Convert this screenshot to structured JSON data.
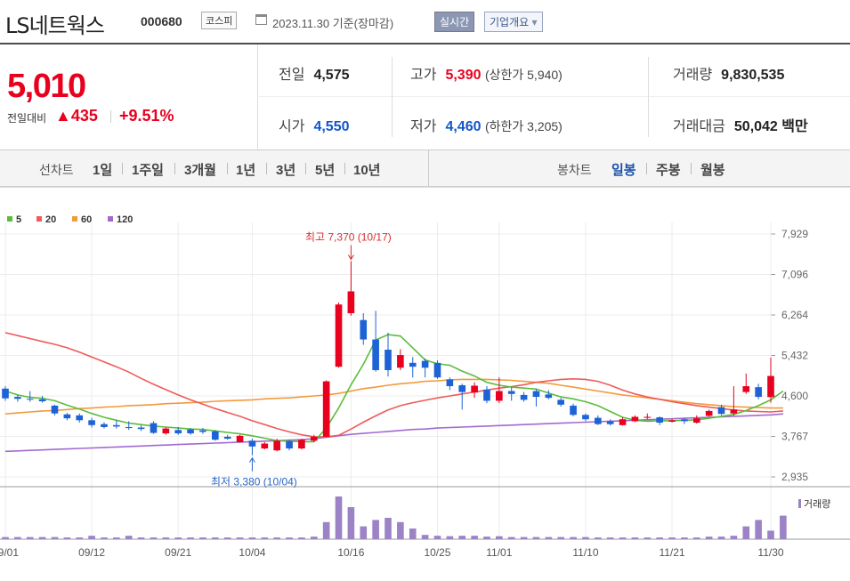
{
  "header": {
    "name": "LS네트웍스",
    "code": "000680",
    "market": "코스피",
    "date": "2023.11.30 기준(장마감)",
    "realtime_label": "실시간",
    "company_label": "기업개요",
    "company_arrow": "▾"
  },
  "price": {
    "current": "5,010",
    "change_label": "전일대비",
    "change_arrow": "▲",
    "change": "435",
    "change_pct": "+9.51%"
  },
  "stats": {
    "prev_label": "전일",
    "prev": "4,575",
    "open_label": "시가",
    "open": "4,550",
    "high_label": "고가",
    "high": "5,390",
    "upper_limit": "(상한가 5,940)",
    "low_label": "저가",
    "low": "4,460",
    "lower_limit": "(하한가 3,205)",
    "volume_label": "거래량",
    "volume": "9,830,535",
    "amount_label": "거래대금",
    "amount": "50,042",
    "amount_unit": "백만"
  },
  "periods": {
    "label": "선차트",
    "items": [
      "1일",
      "1주일",
      "3개월",
      "1년",
      "3년",
      "5년",
      "10년"
    ]
  },
  "candle_types": {
    "label": "봉차트",
    "items": [
      "일봉",
      "주봉",
      "월봉"
    ],
    "active": "일봉"
  },
  "colors": {
    "up": "#e8001e",
    "down": "#1d63d6",
    "ma5": "#5bbd3c",
    "ma20": "#f05a5a",
    "ma60": "#f39a3b",
    "ma120": "#a26ad0",
    "volume": "#9b83c5"
  },
  "chart_data": {
    "type": "candlestick",
    "legend": [
      "5",
      "20",
      "60",
      "120"
    ],
    "ylim": [
      2935,
      7929
    ],
    "y_ticks": [
      "7,929",
      "7,096",
      "6,264",
      "5,432",
      "4,600",
      "3,767",
      "2,935"
    ],
    "x_ticks": [
      "09/01",
      "09/12",
      "09/21",
      "10/04",
      "10/16",
      "10/25",
      "11/01",
      "11/10",
      "11/21",
      "11/30"
    ],
    "annotation_high": "최고 7,370 (10/17)",
    "annotation_low": "최저 3,380 (10/04)",
    "volume_label": "거래량",
    "candles": [
      {
        "o": 4750,
        "c": 4550,
        "h": 4800,
        "l": 4500
      },
      {
        "o": 4580,
        "c": 4540,
        "h": 4620,
        "l": 4480
      },
      {
        "o": 4540,
        "c": 4530,
        "h": 4700,
        "l": 4480
      },
      {
        "o": 4530,
        "c": 4490,
        "h": 4600,
        "l": 4460
      },
      {
        "o": 4400,
        "c": 4240,
        "h": 4420,
        "l": 4200
      },
      {
        "o": 4220,
        "c": 4140,
        "h": 4250,
        "l": 4100
      },
      {
        "o": 4200,
        "c": 4100,
        "h": 4240,
        "l": 4050
      },
      {
        "o": 4100,
        "c": 4000,
        "h": 4150,
        "l": 3950
      },
      {
        "o": 4020,
        "c": 3960,
        "h": 4060,
        "l": 3930
      },
      {
        "o": 4000,
        "c": 3970,
        "h": 4100,
        "l": 3930
      },
      {
        "o": 3960,
        "c": 3940,
        "h": 4080,
        "l": 3900
      },
      {
        "o": 3950,
        "c": 3920,
        "h": 4000,
        "l": 3880
      },
      {
        "o": 4040,
        "c": 3840,
        "h": 4080,
        "l": 3820
      },
      {
        "o": 3830,
        "c": 3930,
        "h": 3950,
        "l": 3800
      },
      {
        "o": 3900,
        "c": 3830,
        "h": 3960,
        "l": 3800
      },
      {
        "o": 3910,
        "c": 3830,
        "h": 3940,
        "l": 3800
      },
      {
        "o": 3890,
        "c": 3860,
        "h": 3940,
        "l": 3820
      },
      {
        "o": 3870,
        "c": 3700,
        "h": 3900,
        "l": 3680
      },
      {
        "o": 3760,
        "c": 3720,
        "h": 3800,
        "l": 3700
      },
      {
        "o": 3650,
        "c": 3780,
        "h": 3800,
        "l": 3640
      },
      {
        "o": 3680,
        "c": 3560,
        "h": 3720,
        "l": 3380
      },
      {
        "o": 3520,
        "c": 3620,
        "h": 3650,
        "l": 3500
      },
      {
        "o": 3480,
        "c": 3680,
        "h": 3720,
        "l": 3460
      },
      {
        "o": 3670,
        "c": 3520,
        "h": 3700,
        "l": 3480
      },
      {
        "o": 3520,
        "c": 3700,
        "h": 3720,
        "l": 3500
      },
      {
        "o": 3680,
        "c": 3760,
        "h": 3800,
        "l": 3650
      },
      {
        "o": 3760,
        "c": 4900,
        "h": 4920,
        "l": 3750
      },
      {
        "o": 5200,
        "c": 6480,
        "h": 6520,
        "l": 5180
      },
      {
        "o": 6300,
        "c": 6750,
        "h": 7370,
        "l": 6250
      },
      {
        "o": 6160,
        "c": 5760,
        "h": 6300,
        "l": 5650
      },
      {
        "o": 5760,
        "c": 5130,
        "h": 6350,
        "l": 5100
      },
      {
        "o": 5550,
        "c": 5130,
        "h": 5900,
        "l": 5000
      },
      {
        "o": 5180,
        "c": 5440,
        "h": 5560,
        "l": 5130
      },
      {
        "o": 5280,
        "c": 5200,
        "h": 5400,
        "l": 4980
      },
      {
        "o": 5320,
        "c": 5180,
        "h": 5370,
        "l": 4980
      },
      {
        "o": 5280,
        "c": 4980,
        "h": 5330,
        "l": 4950
      },
      {
        "o": 4940,
        "c": 4800,
        "h": 4980,
        "l": 4720
      },
      {
        "o": 4820,
        "c": 4680,
        "h": 4850,
        "l": 4320
      },
      {
        "o": 4670,
        "c": 4810,
        "h": 4880,
        "l": 4560
      },
      {
        "o": 4730,
        "c": 4500,
        "h": 4800,
        "l": 4450
      },
      {
        "o": 4500,
        "c": 4700,
        "h": 4980,
        "l": 4450
      },
      {
        "o": 4700,
        "c": 4640,
        "h": 4780,
        "l": 4500
      },
      {
        "o": 4620,
        "c": 4520,
        "h": 4680,
        "l": 4480
      },
      {
        "o": 4700,
        "c": 4580,
        "h": 4740,
        "l": 4380
      },
      {
        "o": 4630,
        "c": 4560,
        "h": 4720,
        "l": 4530
      },
      {
        "o": 4520,
        "c": 4420,
        "h": 4560,
        "l": 4380
      },
      {
        "o": 4400,
        "c": 4210,
        "h": 4440,
        "l": 4180
      },
      {
        "o": 4210,
        "c": 4120,
        "h": 4240,
        "l": 4080
      },
      {
        "o": 4150,
        "c": 4020,
        "h": 4200,
        "l": 4000
      },
      {
        "o": 4080,
        "c": 4020,
        "h": 4120,
        "l": 3990
      },
      {
        "o": 4000,
        "c": 4120,
        "h": 4160,
        "l": 3990
      },
      {
        "o": 4080,
        "c": 4170,
        "h": 4200,
        "l": 4060
      },
      {
        "o": 4150,
        "c": 4170,
        "h": 4240,
        "l": 4120
      },
      {
        "o": 4160,
        "c": 4050,
        "h": 4180,
        "l": 4000
      },
      {
        "o": 4070,
        "c": 4100,
        "h": 4130,
        "l": 4050
      },
      {
        "o": 4120,
        "c": 4080,
        "h": 4150,
        "l": 4020
      },
      {
        "o": 4050,
        "c": 4140,
        "h": 4200,
        "l": 4030
      },
      {
        "o": 4190,
        "c": 4290,
        "h": 4320,
        "l": 4170
      },
      {
        "o": 4370,
        "c": 4230,
        "h": 4420,
        "l": 4200
      },
      {
        "o": 4240,
        "c": 4320,
        "h": 4800,
        "l": 4200
      },
      {
        "o": 4680,
        "c": 4800,
        "h": 5060,
        "l": 4640
      },
      {
        "o": 4780,
        "c": 4580,
        "h": 4850,
        "l": 4530
      },
      {
        "o": 4575,
        "c": 5010,
        "h": 5390,
        "l": 4460
      }
    ],
    "ma5": [
      4700,
      4620,
      4570,
      4550,
      4500,
      4410,
      4330,
      4240,
      4160,
      4100,
      4040,
      4010,
      3980,
      3960,
      3940,
      3920,
      3910,
      3880,
      3850,
      3820,
      3780,
      3730,
      3680,
      3670,
      3660,
      3660,
      3940,
      4350,
      4830,
      5250,
      5750,
      5860,
      5830,
      5590,
      5340,
      5260,
      5230,
      5110,
      5010,
      4880,
      4820,
      4780,
      4760,
      4740,
      4660,
      4580,
      4540,
      4480,
      4400,
      4280,
      4160,
      4100,
      4080,
      4090,
      4090,
      4100,
      4110,
      4140,
      4180,
      4220,
      4300,
      4400,
      4520,
      4700
    ],
    "ma20": [
      5900,
      5840,
      5780,
      5720,
      5660,
      5590,
      5500,
      5400,
      5300,
      5200,
      5090,
      4960,
      4840,
      4730,
      4620,
      4520,
      4430,
      4340,
      4260,
      4180,
      4090,
      4010,
      3930,
      3860,
      3800,
      3760,
      3760,
      3790,
      3920,
      4060,
      4190,
      4310,
      4400,
      4460,
      4510,
      4560,
      4600,
      4640,
      4680,
      4720,
      4760,
      4790,
      4830,
      4880,
      4910,
      4940,
      4950,
      4940,
      4900,
      4820,
      4720,
      4640,
      4580,
      4530,
      4480,
      4440,
      4400,
      4370,
      4340,
      4310,
      4290,
      4280,
      4270,
      4290
    ],
    "ma60": [
      4230,
      4250,
      4270,
      4290,
      4300,
      4320,
      4340,
      4350,
      4370,
      4380,
      4400,
      4410,
      4420,
      4440,
      4450,
      4460,
      4470,
      4490,
      4500,
      4510,
      4520,
      4540,
      4550,
      4560,
      4580,
      4600,
      4620,
      4650,
      4700,
      4750,
      4780,
      4820,
      4850,
      4870,
      4900,
      4910,
      4930,
      4940,
      4940,
      4940,
      4930,
      4920,
      4900,
      4880,
      4860,
      4820,
      4780,
      4740,
      4700,
      4660,
      4620,
      4590,
      4560,
      4530,
      4500,
      4470,
      4440,
      4420,
      4400,
      4380,
      4370,
      4360,
      4350,
      4350
    ],
    "ma120": [
      3460,
      3470,
      3480,
      3490,
      3500,
      3510,
      3520,
      3530,
      3540,
      3550,
      3560,
      3570,
      3580,
      3590,
      3600,
      3610,
      3620,
      3630,
      3640,
      3650,
      3660,
      3670,
      3680,
      3690,
      3700,
      3720,
      3750,
      3780,
      3810,
      3830,
      3850,
      3870,
      3890,
      3910,
      3920,
      3940,
      3950,
      3960,
      3970,
      3980,
      3990,
      4000,
      4010,
      4020,
      4030,
      4040,
      4050,
      4060,
      4070,
      4080,
      4090,
      4100,
      4110,
      4120,
      4130,
      4140,
      4150,
      4160,
      4170,
      4180,
      4190,
      4200,
      4210,
      4230
    ],
    "volume": [
      0.05,
      0.05,
      0.05,
      0.05,
      0.05,
      0.04,
      0.04,
      0.08,
      0.04,
      0.04,
      0.08,
      0.04,
      0.04,
      0.04,
      0.04,
      0.04,
      0.04,
      0.04,
      0.04,
      0.04,
      0.04,
      0.04,
      0.04,
      0.04,
      0.04,
      0.06,
      0.4,
      1.0,
      0.75,
      0.3,
      0.45,
      0.5,
      0.4,
      0.25,
      0.1,
      0.08,
      0.07,
      0.08,
      0.08,
      0.06,
      0.07,
      0.05,
      0.05,
      0.05,
      0.05,
      0.05,
      0.05,
      0.05,
      0.04,
      0.04,
      0.04,
      0.04,
      0.04,
      0.04,
      0.04,
      0.04,
      0.04,
      0.06,
      0.06,
      0.08,
      0.3,
      0.45,
      0.2,
      0.55
    ]
  }
}
